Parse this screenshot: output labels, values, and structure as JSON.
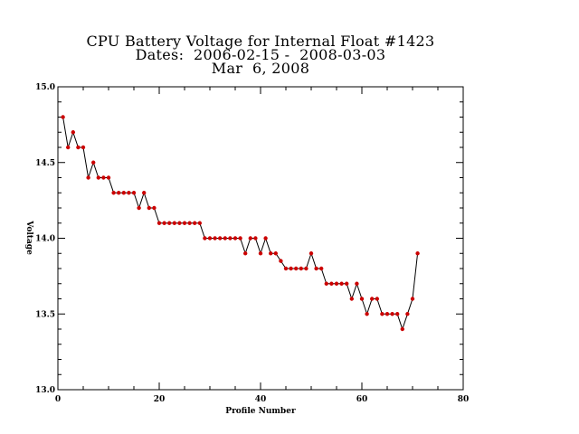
{
  "chart_data": {
    "type": "line",
    "title": "CPU Battery Voltage for Internal Float #1423",
    "subtitle": "Dates:  2006-02-15 -  2008-03-03",
    "date_line": "Mar  6, 2008",
    "xlabel": "Profile Number",
    "ylabel": "Voltage",
    "xlim": [
      0,
      80
    ],
    "ylim": [
      13.0,
      15.0
    ],
    "xticks": [
      0,
      20,
      40,
      60,
      80
    ],
    "xtick_labels": [
      "0",
      "20",
      "40",
      "60",
      "80"
    ],
    "yticks": [
      13.0,
      13.5,
      14.0,
      14.5,
      15.0
    ],
    "ytick_labels": [
      "13.0",
      "13.5",
      "14.0",
      "14.5",
      "15.0"
    ],
    "grid": false,
    "line_color": "#000000",
    "marker_color": "#cc0000",
    "x": [
      1,
      2,
      3,
      4,
      5,
      6,
      7,
      8,
      9,
      10,
      11,
      12,
      13,
      14,
      15,
      16,
      17,
      18,
      19,
      20,
      21,
      22,
      23,
      24,
      25,
      26,
      27,
      28,
      29,
      30,
      31,
      32,
      33,
      34,
      35,
      36,
      37,
      38,
      39,
      40,
      41,
      42,
      43,
      44,
      45,
      46,
      47,
      48,
      49,
      50,
      51,
      52,
      53,
      54,
      55,
      56,
      57,
      58,
      59,
      60,
      61,
      62,
      63,
      64,
      65,
      66,
      67,
      68,
      69,
      70,
      71
    ],
    "y": [
      14.8,
      14.6,
      14.7,
      14.6,
      14.6,
      14.4,
      14.5,
      14.4,
      14.4,
      14.4,
      14.3,
      14.3,
      14.3,
      14.3,
      14.3,
      14.2,
      14.3,
      14.2,
      14.2,
      14.1,
      14.1,
      14.1,
      14.1,
      14.1,
      14.1,
      14.1,
      14.1,
      14.1,
      14.0,
      14.0,
      14.0,
      14.0,
      14.0,
      14.0,
      14.0,
      14.0,
      13.9,
      14.0,
      14.0,
      13.9,
      14.0,
      13.9,
      13.9,
      13.85,
      13.8,
      13.8,
      13.8,
      13.8,
      13.8,
      13.9,
      13.8,
      13.8,
      13.7,
      13.7,
      13.7,
      13.7,
      13.7,
      13.6,
      13.7,
      13.6,
      13.5,
      13.6,
      13.6,
      13.5,
      13.5,
      13.5,
      13.5,
      13.4,
      13.5,
      13.6,
      13.9
    ]
  }
}
